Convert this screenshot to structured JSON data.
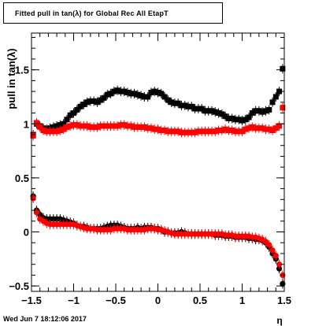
{
  "title": "Fitted pull in tan(λ) for Global Rec All EtapT",
  "datestamp": "Wed Jun  7 18:12:06 2017",
  "colors": {
    "series_black": "#000000",
    "series_red": "#ff0000",
    "frame": "#000000",
    "background": "#ffffff"
  },
  "chart_data": {
    "type": "scatter",
    "title": "Fitted pull in tan(λ) for Global Rec All EtapT",
    "xlabel": "η",
    "ylabel": "pull in tan(λ)",
    "xlim": [
      -1.5,
      1.5
    ],
    "ylim": [
      -0.55,
      1.84
    ],
    "x_ticks": [
      "−1.5",
      "−1",
      "−0.5",
      "0",
      "0.5",
      "1",
      "1.5"
    ],
    "y_ticks": [
      "−0.5",
      "0",
      "0.5",
      "1",
      "1.5"
    ],
    "grid": false,
    "legend": "none",
    "x": [
      -1.48,
      -1.44,
      -1.4,
      -1.36,
      -1.32,
      -1.28,
      -1.24,
      -1.2,
      -1.16,
      -1.12,
      -1.08,
      -1.04,
      -1.0,
      -0.96,
      -0.92,
      -0.88,
      -0.84,
      -0.8,
      -0.76,
      -0.72,
      -0.68,
      -0.64,
      -0.6,
      -0.56,
      -0.52,
      -0.48,
      -0.44,
      -0.4,
      -0.36,
      -0.32,
      -0.28,
      -0.24,
      -0.2,
      -0.16,
      -0.12,
      -0.08,
      -0.04,
      0.0,
      0.04,
      0.08,
      0.12,
      0.16,
      0.2,
      0.24,
      0.28,
      0.32,
      0.36,
      0.4,
      0.44,
      0.48,
      0.52,
      0.56,
      0.6,
      0.64,
      0.68,
      0.72,
      0.76,
      0.8,
      0.84,
      0.88,
      0.92,
      0.96,
      1.0,
      1.04,
      1.08,
      1.12,
      1.16,
      1.2,
      1.24,
      1.28,
      1.32,
      1.36,
      1.4,
      1.44,
      1.48
    ],
    "series": [
      {
        "marker": "square",
        "color": "#000000",
        "values": [
          0.9,
          1.0,
          0.98,
          0.96,
          0.95,
          0.96,
          0.97,
          0.98,
          0.99,
          1.0,
          1.04,
          1.08,
          1.1,
          1.13,
          1.16,
          1.18,
          1.2,
          1.21,
          1.21,
          1.2,
          1.22,
          1.24,
          1.27,
          1.28,
          1.3,
          1.31,
          1.3,
          1.3,
          1.29,
          1.28,
          1.28,
          1.27,
          1.26,
          1.25,
          1.25,
          1.29,
          1.3,
          1.29,
          1.28,
          1.25,
          1.22,
          1.2,
          1.19,
          1.19,
          1.17,
          1.17,
          1.16,
          1.16,
          1.14,
          1.14,
          1.14,
          1.12,
          1.12,
          1.12,
          1.11,
          1.1,
          1.09,
          1.07,
          1.05,
          1.05,
          1.04,
          1.04,
          1.03,
          1.04,
          1.06,
          1.1,
          1.12,
          1.12,
          1.11,
          1.12,
          1.13,
          1.2,
          1.25,
          1.3,
          1.51
        ]
      },
      {
        "marker": "square",
        "color": "#ff0000",
        "values": [
          0.89,
          1.01,
          0.97,
          0.94,
          0.93,
          0.93,
          0.93,
          0.93,
          0.94,
          0.95,
          0.97,
          0.98,
          0.99,
          0.99,
          0.98,
          0.98,
          0.98,
          0.97,
          0.97,
          0.97,
          0.98,
          0.98,
          0.98,
          0.98,
          0.98,
          0.98,
          0.99,
          0.99,
          0.98,
          0.98,
          0.97,
          0.97,
          0.97,
          0.97,
          0.96,
          0.96,
          0.95,
          0.95,
          0.94,
          0.94,
          0.93,
          0.93,
          0.93,
          0.93,
          0.92,
          0.92,
          0.92,
          0.92,
          0.92,
          0.93,
          0.93,
          0.93,
          0.93,
          0.93,
          0.93,
          0.94,
          0.94,
          0.95,
          0.94,
          0.94,
          0.93,
          0.93,
          0.93,
          0.95,
          0.96,
          0.97,
          0.96,
          0.96,
          0.96,
          0.95,
          0.95,
          0.94,
          0.96,
          0.98,
          1.15
        ]
      },
      {
        "marker": "circle",
        "color": "#000000",
        "values": [
          0.33,
          0.2,
          0.16,
          0.13,
          0.12,
          0.12,
          0.12,
          0.12,
          0.12,
          0.11,
          0.1,
          0.09,
          0.08,
          0.06,
          0.05,
          0.05,
          0.04,
          0.03,
          0.03,
          0.03,
          0.03,
          0.04,
          0.05,
          0.06,
          0.06,
          0.06,
          0.05,
          0.04,
          0.03,
          0.03,
          0.03,
          0.04,
          0.03,
          0.04,
          0.04,
          0.04,
          0.03,
          0.03,
          0.02,
          0.0,
          0.0,
          -0.01,
          -0.01,
          -0.01,
          0.0,
          -0.01,
          -0.02,
          -0.02,
          -0.02,
          -0.02,
          -0.02,
          -0.02,
          -0.02,
          -0.02,
          -0.03,
          -0.03,
          -0.03,
          -0.04,
          -0.04,
          -0.04,
          -0.05,
          -0.05,
          -0.05,
          -0.05,
          -0.06,
          -0.06,
          -0.07,
          -0.07,
          -0.08,
          -0.1,
          -0.14,
          -0.2,
          -0.25,
          -0.34,
          -0.48
        ]
      },
      {
        "marker": "circle",
        "color": "#ff0000",
        "values": [
          0.31,
          0.18,
          0.12,
          0.1,
          0.08,
          0.07,
          0.07,
          0.07,
          0.07,
          0.07,
          0.07,
          0.07,
          0.07,
          0.06,
          0.05,
          0.04,
          0.03,
          0.03,
          0.03,
          0.02,
          0.02,
          0.02,
          0.02,
          0.02,
          0.03,
          0.03,
          0.03,
          0.03,
          0.02,
          0.02,
          0.02,
          0.02,
          0.02,
          0.02,
          0.03,
          0.03,
          0.03,
          0.02,
          0.02,
          0.01,
          0.0,
          -0.01,
          -0.02,
          -0.02,
          -0.02,
          -0.02,
          -0.02,
          -0.02,
          -0.02,
          -0.02,
          -0.02,
          -0.02,
          -0.02,
          -0.02,
          -0.02,
          -0.02,
          -0.02,
          -0.03,
          -0.03,
          -0.03,
          -0.04,
          -0.04,
          -0.04,
          -0.04,
          -0.04,
          -0.05,
          -0.05,
          -0.06,
          -0.07,
          -0.09,
          -0.12,
          -0.17,
          -0.22,
          -0.3,
          -0.4
        ]
      }
    ]
  }
}
